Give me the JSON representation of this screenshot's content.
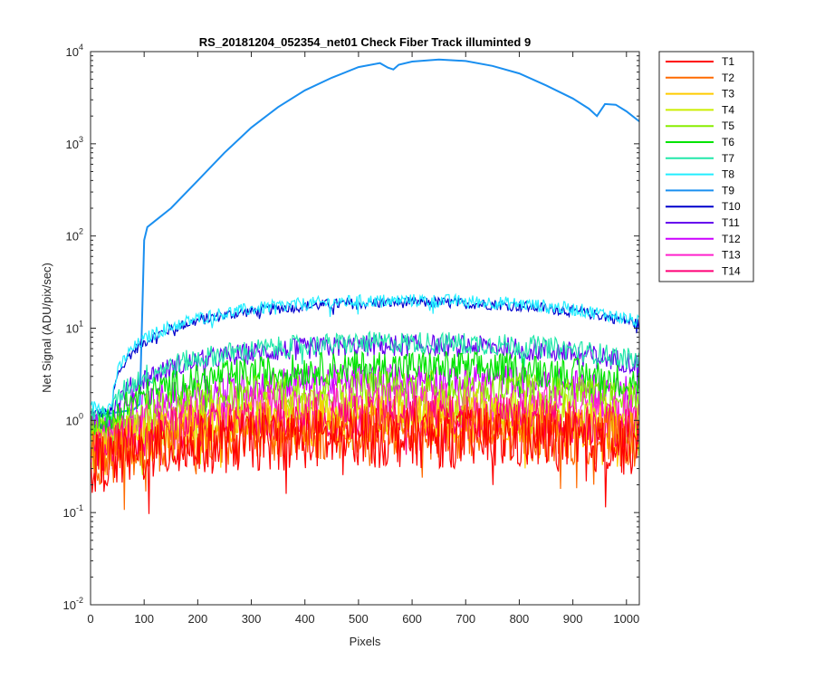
{
  "chart_data": {
    "type": "line",
    "title": "RS_20181204_052354_net01   Check Fiber     Track illuminted 9",
    "xlabel": "Pixels",
    "ylabel": "Net Signal (ADU/pix/sec)",
    "xlim": [
      0,
      1024
    ],
    "ylim": [
      0.01,
      10000
    ],
    "yscale": "log",
    "xticks": [
      0,
      100,
      200,
      300,
      400,
      500,
      600,
      700,
      800,
      900,
      1000
    ],
    "yticks": [
      {
        "value": 0.01,
        "base": "10",
        "exp": "-2"
      },
      {
        "value": 0.1,
        "base": "10",
        "exp": "-1"
      },
      {
        "value": 1,
        "base": "10",
        "exp": "0"
      },
      {
        "value": 10,
        "base": "10",
        "exp": "1"
      },
      {
        "value": 100,
        "base": "10",
        "exp": "2"
      },
      {
        "value": 1000,
        "base": "10",
        "exp": "3"
      },
      {
        "value": 10000,
        "base": "10",
        "exp": "4"
      }
    ],
    "grid": false,
    "legend_position": "outside-right",
    "series": [
      {
        "name": "T1",
        "color": "#ff0000",
        "peak": 0.65,
        "edge": 0.35,
        "noise": 0.55
      },
      {
        "name": "T2",
        "color": "#ff6a00",
        "peak": 0.75,
        "edge": 0.4,
        "noise": 0.5
      },
      {
        "name": "T3",
        "color": "#ffcc00",
        "peak": 1.0,
        "edge": 0.45,
        "noise": 0.45
      },
      {
        "name": "T4",
        "color": "#ccee00",
        "peak": 1.3,
        "edge": 0.5,
        "noise": 0.4
      },
      {
        "name": "T5",
        "color": "#88ee00",
        "peak": 2.2,
        "edge": 0.7,
        "noise": 0.35
      },
      {
        "name": "T6",
        "color": "#00e400",
        "peak": 3.8,
        "edge": 0.9,
        "noise": 0.3
      },
      {
        "name": "T7",
        "color": "#22e8aa",
        "peak": 7.0,
        "edge": 1.1,
        "noise": 0.2
      },
      {
        "name": "T8",
        "color": "#22eeff",
        "peak": 20.0,
        "edge": 1.4,
        "noise": 0.12
      },
      {
        "name": "T9",
        "color": "#1a8ff0",
        "points": [
          [
            0,
            1.1
          ],
          [
            40,
            1.2
          ],
          [
            80,
            1.3
          ],
          [
            92,
            1.5
          ],
          [
            100,
            90
          ],
          [
            106,
            125
          ],
          [
            120,
            145
          ],
          [
            150,
            200
          ],
          [
            200,
            400
          ],
          [
            250,
            800
          ],
          [
            300,
            1500
          ],
          [
            350,
            2500
          ],
          [
            400,
            3800
          ],
          [
            450,
            5200
          ],
          [
            500,
            6800
          ],
          [
            540,
            7500
          ],
          [
            555,
            6700
          ],
          [
            565,
            6400
          ],
          [
            575,
            7200
          ],
          [
            600,
            7800
          ],
          [
            650,
            8200
          ],
          [
            700,
            7900
          ],
          [
            750,
            7000
          ],
          [
            800,
            5800
          ],
          [
            850,
            4300
          ],
          [
            900,
            3100
          ],
          [
            930,
            2400
          ],
          [
            945,
            2000
          ],
          [
            960,
            2700
          ],
          [
            980,
            2650
          ],
          [
            1000,
            2250
          ],
          [
            1024,
            1750
          ]
        ]
      },
      {
        "name": "T10",
        "color": "#0000cc",
        "peak": 19.0,
        "edge": 1.2,
        "noise": 0.1
      },
      {
        "name": "T11",
        "color": "#6600ee",
        "peak": 6.5,
        "edge": 1.0,
        "noise": 0.2
      },
      {
        "name": "T12",
        "color": "#cc00ff",
        "peak": 2.8,
        "edge": 0.8,
        "noise": 0.3
      },
      {
        "name": "T13",
        "color": "#ff22cc",
        "peak": 1.6,
        "edge": 0.6,
        "noise": 0.35
      },
      {
        "name": "T14",
        "color": "#ff0077",
        "peak": 1.1,
        "edge": 0.5,
        "noise": 0.4
      }
    ]
  }
}
